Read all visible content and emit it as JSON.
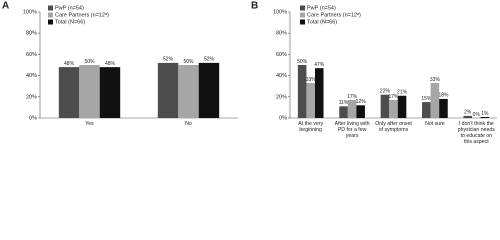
{
  "chart_data": [
    {
      "type": "bar",
      "label": "A",
      "categories": [
        "Yes",
        "No"
      ],
      "series": [
        {
          "name": "PwP (n=54)",
          "color": "#4d4d4d",
          "values": [
            48,
            52
          ],
          "value_labels": [
            "48%",
            "52%"
          ]
        },
        {
          "name": "Care Partners (n=12ᵃ)",
          "color": "#a6a6a6",
          "values": [
            50,
            50
          ],
          "value_labels": [
            "50%",
            "50%"
          ]
        },
        {
          "name": "Total (N=66)",
          "color": "#111111",
          "values": [
            48,
            52
          ],
          "value_labels": [
            "48%",
            "52%"
          ]
        }
      ],
      "ylim": [
        0,
        100
      ],
      "yticks": [
        {
          "value": 0,
          "label": "0%"
        },
        {
          "value": 20,
          "label": "20%"
        },
        {
          "value": 40,
          "label": "40%"
        },
        {
          "value": 60,
          "label": "60%"
        },
        {
          "value": 80,
          "label": "80%"
        },
        {
          "value": 100,
          "label": "100%"
        }
      ]
    },
    {
      "type": "bar",
      "label": "B",
      "categories": [
        "At the very beginning",
        "After living with PD for a few years",
        "Only after onset of symptoms",
        "Not sure",
        "I don't think the physician needs to educate on this aspect"
      ],
      "series": [
        {
          "name": "PwP (n=54)",
          "color": "#4d4d4d",
          "values": [
            50,
            11,
            22,
            15,
            2
          ],
          "value_labels": [
            "50%",
            "11%",
            "22%",
            "15%",
            "2%"
          ]
        },
        {
          "name": "Care Partners (n=12ᵃ)",
          "color": "#a6a6a6",
          "values": [
            33,
            17,
            17,
            33,
            0
          ],
          "value_labels": [
            "33%",
            "17%",
            "17%",
            "33%",
            "0%"
          ]
        },
        {
          "name": "Total (N=66)",
          "color": "#111111",
          "values": [
            47,
            12,
            21,
            18,
            1
          ],
          "value_labels": [
            "47%",
            "12%",
            "21%",
            "18%",
            "1%"
          ]
        }
      ],
      "ylim": [
        0,
        100
      ],
      "yticks": [
        {
          "value": 0,
          "label": "0%"
        },
        {
          "value": 20,
          "label": "20%"
        },
        {
          "value": 40,
          "label": "40%"
        },
        {
          "value": 60,
          "label": "60%"
        },
        {
          "value": 80,
          "label": "80%"
        },
        {
          "value": 100,
          "label": "100%"
        }
      ]
    }
  ]
}
